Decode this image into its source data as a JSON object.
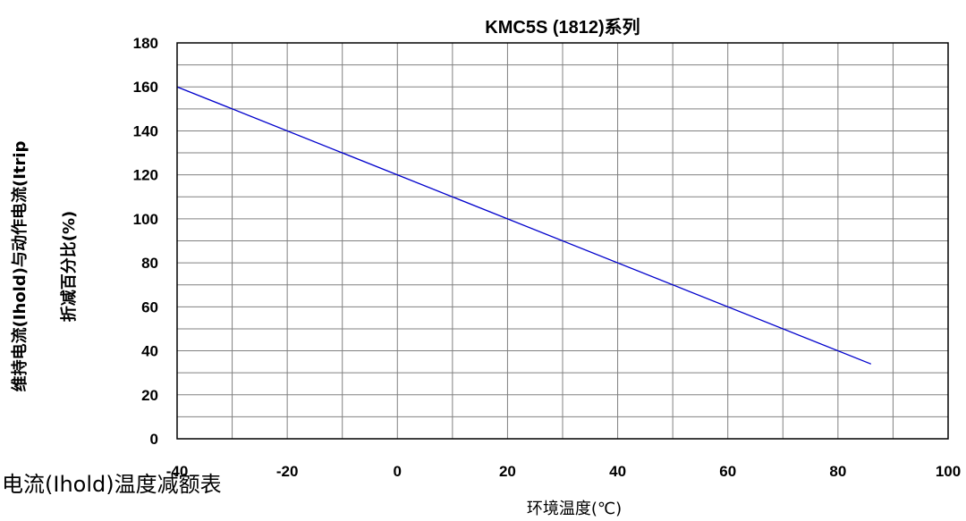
{
  "caption": "电流(Ihold)温度减额表",
  "chart_data": {
    "type": "line",
    "title": "KMC5S (1812)系列",
    "xlabel": "环境温度(℃)",
    "ylabel_line1": "维持电流(Ihold)与动作电流(Itrip",
    "ylabel_line2": "折减百分比(%)",
    "xlim": [
      -40,
      100
    ],
    "ylim": [
      0,
      180
    ],
    "x_ticks": [
      "-40",
      "-20",
      "0",
      "20",
      "40",
      "60",
      "80",
      "100"
    ],
    "y_ticks": [
      "0",
      "20",
      "40",
      "60",
      "80",
      "100",
      "120",
      "140",
      "160",
      "180"
    ],
    "grid": true,
    "series": [
      {
        "x": [
          -40,
          86
        ],
        "y": [
          160,
          34
        ],
        "color": "#0000cc"
      }
    ]
  }
}
